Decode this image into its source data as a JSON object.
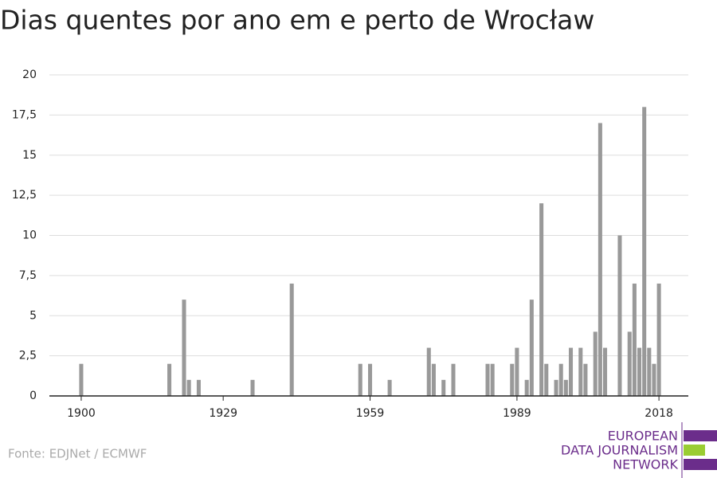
{
  "chart_data": {
    "type": "bar",
    "title": "Dias quentes por ano em e perto de Wrocław",
    "source": "Fonte: EDJNet / ECMWF",
    "logo": [
      "EUROPEAN",
      "DATA JOURNALISM",
      "NETWORK"
    ],
    "x": [
      1900,
      1918,
      1921,
      1922,
      1924,
      1935,
      1943,
      1957,
      1959,
      1963,
      1971,
      1972,
      1974,
      1976,
      1983,
      1984,
      1988,
      1989,
      1991,
      1992,
      1994,
      1995,
      1997,
      1998,
      1999,
      2000,
      2002,
      2003,
      2005,
      2006,
      2007,
      2010,
      2012,
      2013,
      2014,
      2015,
      2016,
      2017,
      2018
    ],
    "values": [
      2,
      2,
      6,
      1,
      1,
      1,
      7,
      2,
      2,
      1,
      3,
      2,
      1,
      2,
      2,
      2,
      2,
      3,
      1,
      6,
      12,
      2,
      1,
      2,
      1,
      3,
      3,
      2,
      4,
      17,
      3,
      10,
      4,
      7,
      3,
      18,
      3,
      2,
      7
    ],
    "color": "#999999",
    "xlim": [
      1893.5,
      2024
    ],
    "xticks": [
      1900,
      1929,
      1959,
      1989,
      2018
    ],
    "ylim": [
      0,
      20
    ],
    "yticks": [
      0,
      {
        "value": 2.5,
        "label": "2,5"
      },
      5,
      {
        "value": 7.5,
        "label": "7,5"
      },
      10,
      {
        "value": 12.5,
        "label": "12,5"
      },
      15,
      {
        "value": 17.5,
        "label": "17,5"
      },
      20
    ],
    "grid": true
  }
}
